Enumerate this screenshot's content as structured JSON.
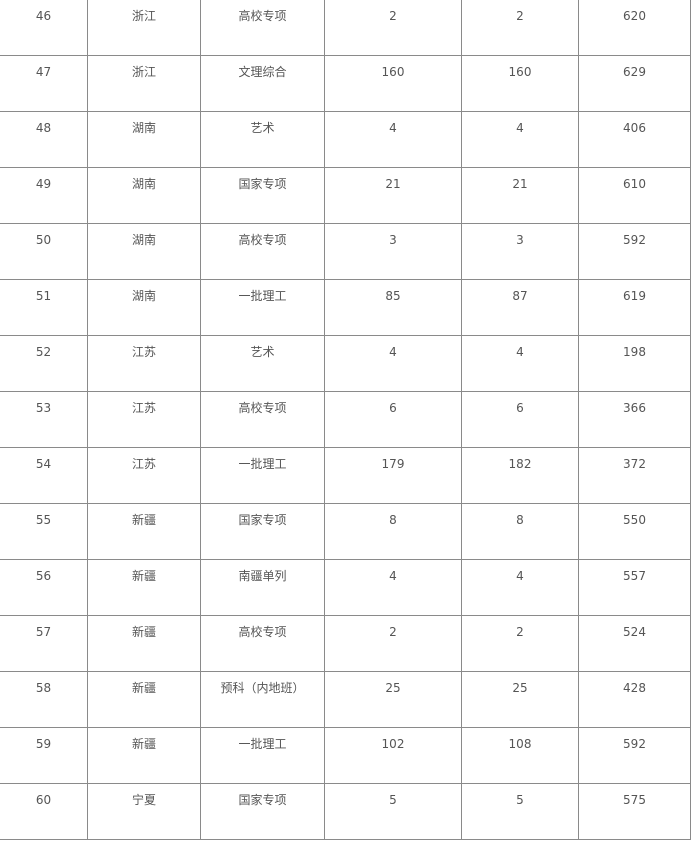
{
  "table": {
    "rows": [
      [
        "46",
        "浙江",
        "高校专项",
        "2",
        "2",
        "620"
      ],
      [
        "47",
        "浙江",
        "文理综合",
        "160",
        "160",
        "629"
      ],
      [
        "48",
        "湖南",
        "艺术",
        "4",
        "4",
        "406"
      ],
      [
        "49",
        "湖南",
        "国家专项",
        "21",
        "21",
        "610"
      ],
      [
        "50",
        "湖南",
        "高校专项",
        "3",
        "3",
        "592"
      ],
      [
        "51",
        "湖南",
        "一批理工",
        "85",
        "87",
        "619"
      ],
      [
        "52",
        "江苏",
        "艺术",
        "4",
        "4",
        "198"
      ],
      [
        "53",
        "江苏",
        "高校专项",
        "6",
        "6",
        "366"
      ],
      [
        "54",
        "江苏",
        "一批理工",
        "179",
        "182",
        "372"
      ],
      [
        "55",
        "新疆",
        "国家专项",
        "8",
        "8",
        "550"
      ],
      [
        "56",
        "新疆",
        "南疆单列",
        "4",
        "4",
        "557"
      ],
      [
        "57",
        "新疆",
        "高校专项",
        "2",
        "2",
        "524"
      ],
      [
        "58",
        "新疆",
        "预科（内地班）",
        "25",
        "25",
        "428"
      ],
      [
        "59",
        "新疆",
        "一批理工",
        "102",
        "108",
        "592"
      ],
      [
        "60",
        "宁夏",
        "国家专项",
        "5",
        "5",
        "575"
      ]
    ]
  }
}
